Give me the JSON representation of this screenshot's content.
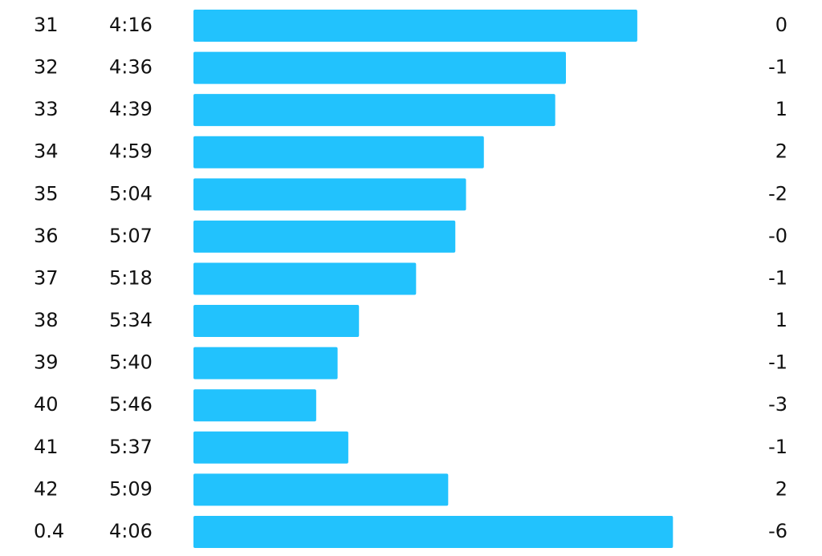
{
  "rows": [
    {
      "km": "31",
      "pace": "4:16",
      "elevation": "0"
    },
    {
      "km": "32",
      "pace": "4:36",
      "elevation": "-1"
    },
    {
      "km": "33",
      "pace": "4:39",
      "elevation": "1"
    },
    {
      "km": "34",
      "pace": "4:59",
      "elevation": "2"
    },
    {
      "km": "35",
      "pace": "5:04",
      "elevation": "-2"
    },
    {
      "km": "36",
      "pace": "5:07",
      "elevation": "-0"
    },
    {
      "km": "37",
      "pace": "5:18",
      "elevation": "-1"
    },
    {
      "km": "38",
      "pace": "5:34",
      "elevation": "1"
    },
    {
      "km": "39",
      "pace": "5:40",
      "elevation": "-1"
    },
    {
      "km": "40",
      "pace": "5:46",
      "elevation": "-3"
    },
    {
      "km": "41",
      "pace": "5:37",
      "elevation": "-1"
    },
    {
      "km": "42",
      "pace": "5:09",
      "elevation": "2"
    },
    {
      "km": "0.4",
      "pace": "4:06",
      "elevation": "-6"
    }
  ]
}
